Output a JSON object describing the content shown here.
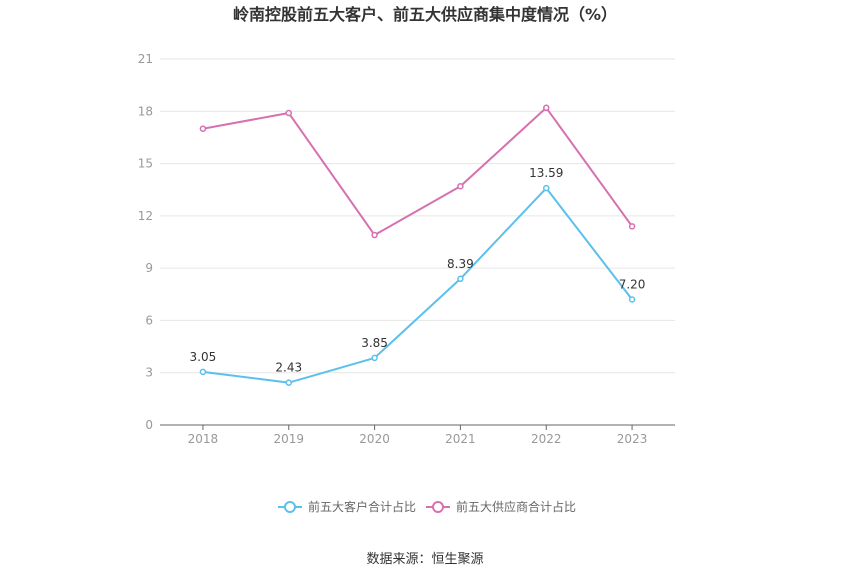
{
  "chart_data": {
    "type": "line",
    "title": "岭南控股前五大客户、前五大供应商集中度情况（%）",
    "categories": [
      "2018",
      "2019",
      "2020",
      "2021",
      "2022",
      "2023"
    ],
    "ylim": [
      0,
      21
    ],
    "yticks": [
      0,
      3,
      6,
      9,
      12,
      15,
      18,
      21
    ],
    "grid": true,
    "legend_position": "bottom",
    "series": [
      {
        "name": "前五大客户合计占比",
        "color": "#5bc0eb",
        "values": [
          3.05,
          2.43,
          3.85,
          8.39,
          13.59,
          7.2
        ],
        "labels": [
          "3.05",
          "2.43",
          "3.85",
          "8.39",
          "13.59",
          "7.20"
        ],
        "show_labels": true
      },
      {
        "name": "前五大供应商合计占比",
        "color": "#d670b0",
        "values": [
          17.0,
          17.9,
          10.9,
          13.7,
          18.2,
          11.4
        ],
        "show_labels": false
      }
    ],
    "source": "数据来源：恒生聚源"
  }
}
